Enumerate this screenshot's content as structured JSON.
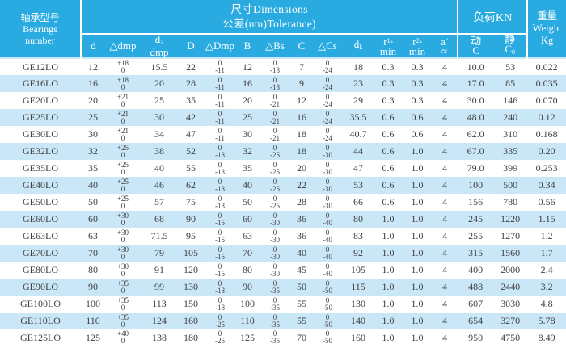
{
  "header": {
    "bearings_label": {
      "zh": "轴承型号",
      "en1": "Bearings",
      "en2": "number"
    },
    "dimensions_title": {
      "line1": "尺寸Dimensions",
      "line2": "公差(um)Tolerance)"
    },
    "load_title": "负荷KN",
    "weight_label": {
      "zh": "重量",
      "en": "Weight",
      "unit": "Kg"
    }
  },
  "columns": [
    {
      "base": "d"
    },
    {
      "base": "△dmp"
    },
    {
      "base": "d",
      "sub": "2",
      "line2": "dmp"
    },
    {
      "base": "D"
    },
    {
      "base": "△Dmp"
    },
    {
      "base": "B"
    },
    {
      "base": "△Bs"
    },
    {
      "base": "C"
    },
    {
      "base": "△Cs"
    },
    {
      "base": "d",
      "sub": "k"
    },
    {
      "base": "r",
      "sup": "1s",
      "line2": "min"
    },
    {
      "base": "r",
      "sup": "2s",
      "line2": "min"
    },
    {
      "base": "a",
      "sup": "°",
      "line2": "≈"
    },
    {
      "base": "动",
      "line2": "C"
    },
    {
      "base": "静",
      "line2": "C",
      "line2_sub": "0"
    }
  ],
  "colors": {
    "header_bg": "#29aae1",
    "row_stripe": "#cae7f7",
    "header_text": "#ffffff",
    "data_text": "#3f3f3f"
  },
  "table": {
    "rows": [
      [
        "GE12LO",
        "12",
        [
          "+18",
          "0"
        ],
        "15.5",
        "22",
        [
          "0",
          "-11"
        ],
        "12",
        [
          "0",
          "-18"
        ],
        "7",
        [
          "0",
          "-24"
        ],
        "18",
        "0.3",
        "0.3",
        "4",
        "10.0",
        "53",
        "0.022"
      ],
      [
        "GE16LO",
        "16",
        [
          "+18",
          "0"
        ],
        "20",
        "28",
        [
          "0",
          "-11"
        ],
        "16",
        [
          "0",
          "-18"
        ],
        "9",
        [
          "0",
          "-24"
        ],
        "23",
        "0.3",
        "0.3",
        "4",
        "17.0",
        "85",
        "0.035"
      ],
      [
        "GE20LO",
        "20",
        [
          "+21",
          "0"
        ],
        "25",
        "35",
        [
          "0",
          "-11"
        ],
        "20",
        [
          "0",
          "-21"
        ],
        "12",
        [
          "0",
          "-24"
        ],
        "29",
        "0.3",
        "0.3",
        "4",
        "30.0",
        "146",
        "0.070"
      ],
      [
        "GE25LO",
        "25",
        [
          "+21",
          "0"
        ],
        "30",
        "42",
        [
          "0",
          "-11"
        ],
        "25",
        [
          "0",
          "-21"
        ],
        "16",
        [
          "0",
          "-24"
        ],
        "35.5",
        "0.6",
        "0.6",
        "4",
        "48.0",
        "240",
        "0.12"
      ],
      [
        "GE30LO",
        "30",
        [
          "+21",
          "0"
        ],
        "34",
        "47",
        [
          "0",
          "-11"
        ],
        "30",
        [
          "0",
          "-21"
        ],
        "18",
        [
          "0",
          "-24"
        ],
        "40.7",
        "0.6",
        "0.6",
        "4",
        "62.0",
        "310",
        "0.168"
      ],
      [
        "GE32LO",
        "32",
        [
          "+25",
          "0"
        ],
        "38",
        "52",
        [
          "0",
          "-13"
        ],
        "32",
        [
          "0",
          "-25"
        ],
        "18",
        [
          "0",
          "-30"
        ],
        "44",
        "0.6",
        "1.0",
        "4",
        "67.0",
        "335",
        "0.20"
      ],
      [
        "GE35LO",
        "35",
        [
          "+25",
          "0"
        ],
        "40",
        "55",
        [
          "0",
          "-13"
        ],
        "35",
        [
          "0",
          "-25"
        ],
        "20",
        [
          "0",
          "-30"
        ],
        "47",
        "0.6",
        "1.0",
        "4",
        "79.0",
        "399",
        "0.253"
      ],
      [
        "GE40LO",
        "40",
        [
          "+25",
          "0"
        ],
        "46",
        "62",
        [
          "0",
          "-13"
        ],
        "40",
        [
          "0",
          "-25"
        ],
        "22",
        [
          "0",
          "-30"
        ],
        "53",
        "0.6",
        "1.0",
        "4",
        "100",
        "500",
        "0.34"
      ],
      [
        "GE50LO",
        "50",
        [
          "+25",
          "0"
        ],
        "57",
        "75",
        [
          "0",
          "-13"
        ],
        "50",
        [
          "0",
          "-25"
        ],
        "28",
        [
          "0",
          "-30"
        ],
        "66",
        "0.6",
        "1.0",
        "4",
        "156",
        "780",
        "0.56"
      ],
      [
        "GE60LO",
        "60",
        [
          "+30",
          "0"
        ],
        "68",
        "90",
        [
          "0",
          "-15"
        ],
        "60",
        [
          "0",
          "-30"
        ],
        "36",
        [
          "0",
          "-40"
        ],
        "80",
        "1.0",
        "1.0",
        "4",
        "245",
        "1220",
        "1.15"
      ],
      [
        "GE63LO",
        "63",
        [
          "+30",
          "0"
        ],
        "71.5",
        "95",
        [
          "0",
          "-15"
        ],
        "63",
        [
          "0",
          "-30"
        ],
        "36",
        [
          "0",
          "-40"
        ],
        "83",
        "1.0",
        "1.0",
        "4",
        "255",
        "1270",
        "1.2"
      ],
      [
        "GE70LO",
        "70",
        [
          "+30",
          "0"
        ],
        "79",
        "105",
        [
          "0",
          "-15"
        ],
        "70",
        [
          "0",
          "-30"
        ],
        "40",
        [
          "0",
          "-40"
        ],
        "92",
        "1.0",
        "1.0",
        "4",
        "315",
        "1560",
        "1.7"
      ],
      [
        "GE80LO",
        "80",
        [
          "+30",
          "0"
        ],
        "91",
        "120",
        [
          "0",
          "-15"
        ],
        "80",
        [
          "0",
          "-30"
        ],
        "45",
        [
          "0",
          "-40"
        ],
        "105",
        "1.0",
        "1.0",
        "4",
        "400",
        "2000",
        "2.4"
      ],
      [
        "GE90LO",
        "90",
        [
          "+35",
          "0"
        ],
        "99",
        "130",
        [
          "0",
          "-18"
        ],
        "90",
        [
          "0",
          "-35"
        ],
        "50",
        [
          "0",
          "-50"
        ],
        "115",
        "1.0",
        "1.0",
        "4",
        "488",
        "2440",
        "3.2"
      ],
      [
        "GE100LO",
        "100",
        [
          "+35",
          "0"
        ],
        "113",
        "150",
        [
          "0",
          "-18"
        ],
        "100",
        [
          "0",
          "-35"
        ],
        "55",
        [
          "0",
          "-50"
        ],
        "130",
        "1.0",
        "1.0",
        "4",
        "607",
        "3030",
        "4.8"
      ],
      [
        "GE110LO",
        "110",
        [
          "+35",
          "0"
        ],
        "124",
        "160",
        [
          "0",
          "-25"
        ],
        "110",
        [
          "0",
          "-35"
        ],
        "55",
        [
          "0",
          "-50"
        ],
        "140",
        "1.0",
        "1.0",
        "4",
        "654",
        "3270",
        "5.78"
      ],
      [
        "GE125LO",
        "125",
        [
          "+40",
          "0"
        ],
        "138",
        "180",
        [
          "0",
          "-25"
        ],
        "125",
        [
          "0",
          "-35"
        ],
        "70",
        [
          "0",
          "-50"
        ],
        "160",
        "1.0",
        "1.0",
        "4",
        "950",
        "4750",
        "8.49"
      ]
    ]
  }
}
